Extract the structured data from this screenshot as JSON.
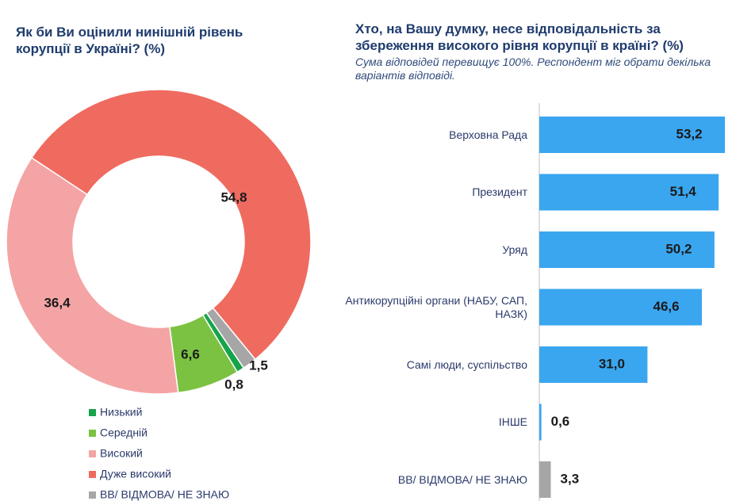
{
  "chart_data": [
    {
      "type": "donut",
      "title": "Як би Ви оцінили нинішній рівень корупції в Україні? (%)",
      "categories": [
        "Низький",
        "Середній",
        "Високий",
        "Дуже високий",
        "ВВ/ ВІДМОВА/ НЕ ЗНАЮ"
      ],
      "values": [
        0.8,
        6.6,
        36.4,
        54.8,
        1.5
      ],
      "value_labels": [
        "0,8",
        "6,6",
        "36,4",
        "54,8",
        "1,5"
      ],
      "colors": [
        "#17a34a",
        "#7cc242",
        "#f4a4a4",
        "#ef6b5f",
        "#a6a6a6"
      ]
    },
    {
      "type": "hbar",
      "title": "Хто, на Вашу думку, несе відповідальність за збереження високого рівня корупції в країні? (%)",
      "subtitle": "Сума відповідей перевищує 100%. Респондент міг обрати декілька варіантів відповіді.",
      "categories": [
        "Верховна Рада",
        "Президент",
        "Уряд",
        "Антикорупційні органи (НАБУ, САП, НАЗК)",
        "Самі люди, суспільство",
        "ІНШЕ",
        "ВВ/ ВІДМОВА/ НЕ ЗНАЮ"
      ],
      "values": [
        53.2,
        51.4,
        50.2,
        46.6,
        31.0,
        0.6,
        3.3
      ],
      "value_labels": [
        "53,2",
        "51,4",
        "50,2",
        "46,6",
        "31,0",
        "0,6",
        "3,3"
      ],
      "colors": [
        "#3aa6f0",
        "#3aa6f0",
        "#3aa6f0",
        "#3aa6f0",
        "#3aa6f0",
        "#3aa6f0",
        "#a6a6a6"
      ]
    }
  ]
}
